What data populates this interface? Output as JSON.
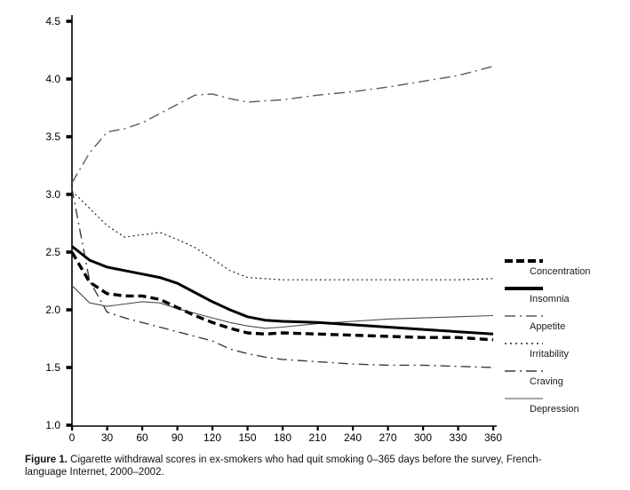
{
  "figure": {
    "caption_label": "Figure 1.",
    "caption_line1_rest": " Cigarette withdrawal scores in ex-smokers who had quit smoking 0–365 days before the survey, French-",
    "caption_line2": "language Internet, 2000–2002."
  },
  "chart_data": {
    "type": "line",
    "title": "",
    "xlabel": "",
    "ylabel": "",
    "xlim": [
      0,
      360
    ],
    "ylim": [
      1.0,
      4.5
    ],
    "grid": false,
    "legend_position": "right",
    "x_ticks": [
      0,
      30,
      60,
      90,
      120,
      150,
      180,
      210,
      240,
      270,
      300,
      330,
      360
    ],
    "y_ticks": [
      1.0,
      1.5,
      2.0,
      2.5,
      3.0,
      3.5,
      4.0,
      4.5
    ],
    "x": [
      0,
      15,
      30,
      45,
      60,
      75,
      90,
      105,
      120,
      135,
      150,
      165,
      180,
      210,
      240,
      270,
      300,
      330,
      360
    ],
    "series": [
      {
        "name": "Concentration",
        "values": [
          2.5,
          2.24,
          2.14,
          2.12,
          2.12,
          2.09,
          2.02,
          1.95,
          1.89,
          1.84,
          1.8,
          1.79,
          1.8,
          1.79,
          1.78,
          1.77,
          1.76,
          1.76,
          1.74
        ],
        "style": {
          "color": "#000000",
          "width": 3.4,
          "dash": "9 5",
          "z": 6,
          "swatch_width": 4,
          "swatch_dash": "9 4"
        }
      },
      {
        "name": "Insomnia",
        "values": [
          2.55,
          2.43,
          2.37,
          2.34,
          2.31,
          2.28,
          2.23,
          2.15,
          2.07,
          2.0,
          1.94,
          1.91,
          1.9,
          1.89,
          1.87,
          1.85,
          1.83,
          1.81,
          1.79
        ],
        "style": {
          "color": "#000000",
          "width": 3.0,
          "dash": "",
          "z": 5,
          "swatch_width": 4,
          "swatch_dash": ""
        }
      },
      {
        "name": "Appetite",
        "values": [
          3.1,
          3.36,
          3.54,
          3.57,
          3.62,
          3.7,
          3.78,
          3.86,
          3.87,
          3.83,
          3.8,
          3.81,
          3.82,
          3.86,
          3.89,
          3.93,
          3.98,
          4.03,
          4.11
        ],
        "style": {
          "color": "#5a5a5a",
          "width": 1.4,
          "dash": "12 5 2 5",
          "z": 1,
          "swatch_width": 1.6,
          "swatch_dash": "12 5 2 5"
        }
      },
      {
        "name": "Irritability",
        "values": [
          3.03,
          2.88,
          2.73,
          2.63,
          2.65,
          2.67,
          2.61,
          2.54,
          2.44,
          2.34,
          2.28,
          2.27,
          2.26,
          2.26,
          2.26,
          2.26,
          2.26,
          2.26,
          2.27
        ],
        "style": {
          "color": "#222222",
          "width": 1.2,
          "dash": "2 3.2",
          "z": 2,
          "swatch_width": 1.4,
          "swatch_dash": "2 4"
        }
      },
      {
        "name": "Craving",
        "values": [
          3.05,
          2.25,
          1.98,
          1.93,
          1.89,
          1.85,
          1.81,
          1.77,
          1.73,
          1.66,
          1.62,
          1.59,
          1.57,
          1.55,
          1.53,
          1.52,
          1.52,
          1.51,
          1.5
        ],
        "style": {
          "color": "#3c3c3c",
          "width": 1.4,
          "dash": "11 5 2 5",
          "z": 3,
          "swatch_width": 1.6,
          "swatch_dash": "12 5 2 5"
        }
      },
      {
        "name": "Depression",
        "values": [
          2.21,
          2.06,
          2.03,
          2.05,
          2.07,
          2.06,
          2.01,
          1.97,
          1.93,
          1.89,
          1.86,
          1.84,
          1.85,
          1.88,
          1.9,
          1.92,
          1.93,
          1.94,
          1.95
        ],
        "style": {
          "color": "#4d4d4d",
          "width": 1.1,
          "dash": "",
          "z": 4,
          "swatch_width": 1.1,
          "swatch_dash": ""
        }
      }
    ]
  }
}
